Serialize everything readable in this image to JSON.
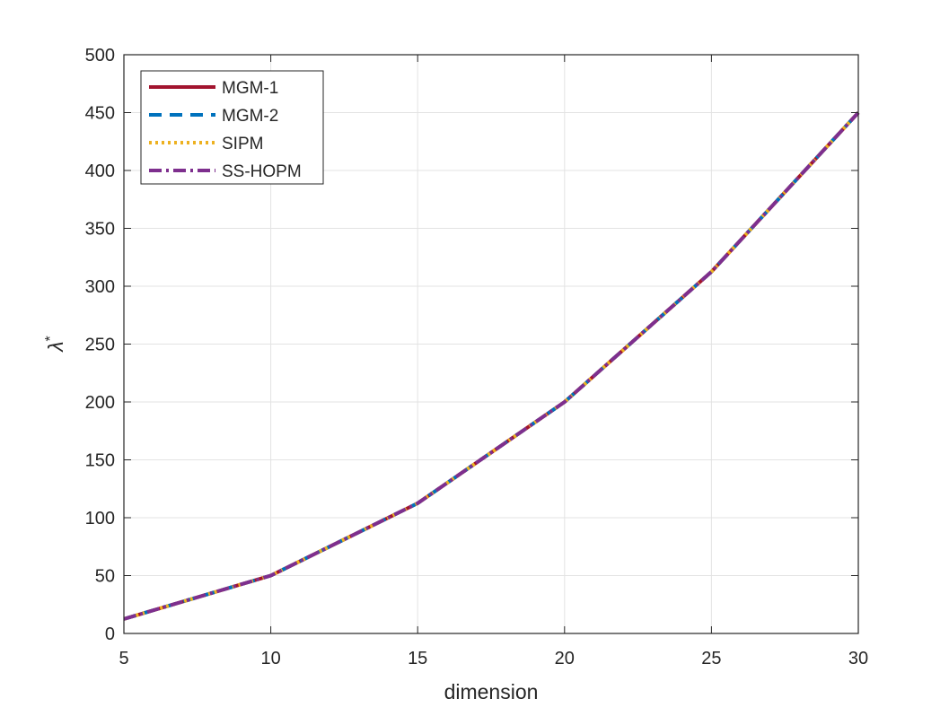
{
  "chart_data": {
    "type": "line",
    "title": "",
    "xlabel": "dimension",
    "ylabel": "λ",
    "ylabel_superscript": "*",
    "xlim": [
      5,
      30
    ],
    "ylim": [
      0,
      500
    ],
    "xticks": [
      "5",
      "10",
      "15",
      "20",
      "25",
      "30"
    ],
    "yticks": [
      "0",
      "50",
      "100",
      "150",
      "200",
      "250",
      "300",
      "350",
      "400",
      "450",
      "500"
    ],
    "grid": true,
    "legend_position": "top-left",
    "x": [
      5,
      10,
      15,
      20,
      25,
      30
    ],
    "series": [
      {
        "name": "MGM-1",
        "values": [
          12.5,
          50,
          112.5,
          200,
          312.5,
          450
        ],
        "color": "#a2142f",
        "style": "solid"
      },
      {
        "name": "MGM-2",
        "values": [
          12.5,
          50,
          112.5,
          200,
          312.5,
          450
        ],
        "color": "#0072bd",
        "style": "dashed"
      },
      {
        "name": "SIPM",
        "values": [
          12.5,
          50,
          112.5,
          200,
          312.5,
          450
        ],
        "color": "#edb120",
        "style": "dotted"
      },
      {
        "name": "SS-HOPM",
        "values": [
          12.5,
          50,
          112.5,
          200,
          312.5,
          450
        ],
        "color": "#7e2f8e",
        "style": "dashdot"
      }
    ]
  }
}
